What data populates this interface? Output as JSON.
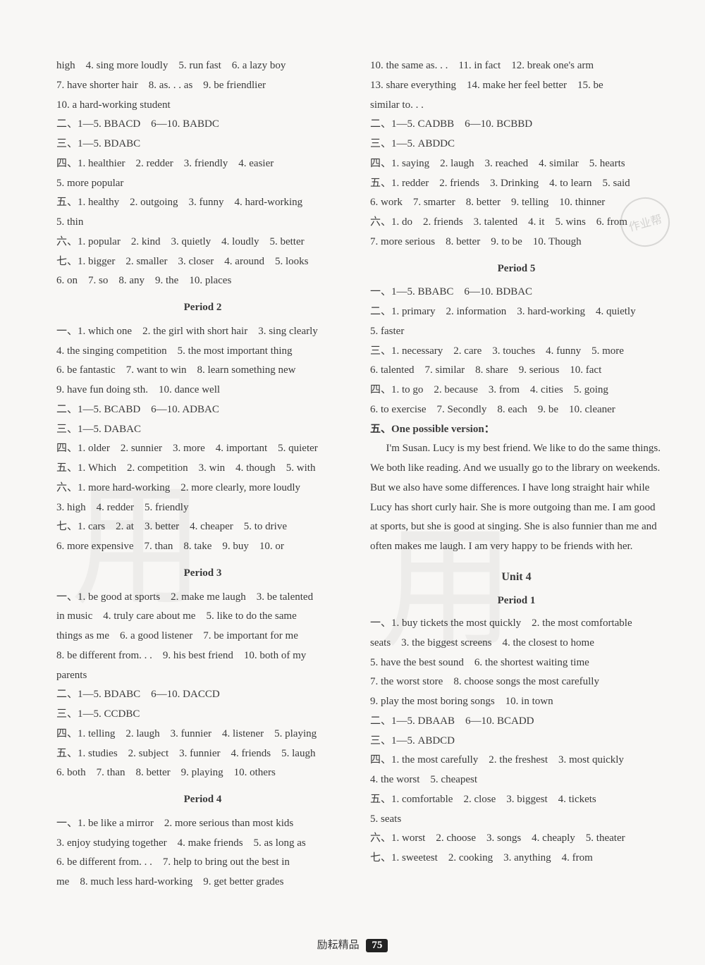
{
  "left": {
    "p1_prefix": [
      "high　4. sing more loudly　5. run fast　6. a lazy boy",
      "7. have shorter hair　8. as. . . as　9. be friendlier",
      "10. a hard-working student",
      "二、1—5. BBACD　6—10. BABDC",
      "三、1—5. BDABC",
      "四、1. healthier　2. redder　3. friendly　4. easier",
      "5. more popular",
      "五、1. healthy　2. outgoing　3. funny　4. hard-working",
      "5. thin",
      "六、1. popular　2. kind　3. quietly　4. loudly　5. better",
      "七、1. bigger　2. smaller　3. closer　4. around　5. looks",
      "6. on　7. so　8. any　9. the　10. places"
    ],
    "p2_title": "Period 2",
    "p2": [
      "一、1. which one　2. the girl with short hair　3. sing clearly",
      "4. the singing competition　5. the most important thing",
      "6. be fantastic　7. want to win　8. learn something new",
      "9. have fun doing sth.　10. dance well",
      "二、1—5. BCABD　6—10. ADBAC",
      "三、1—5. DABAC",
      "四、1. older　2. sunnier　3. more　4. important　5. quieter",
      "五、1. Which　2. competition　3. win　4. though　5. with",
      "六、1. more hard-working　2. more clearly, more loudly",
      "3. high　4. redder　5. friendly",
      "七、1. cars　2. at　3. better　4. cheaper　5. to drive",
      "6. more expensive　7. than　8. take　9. buy　10. or"
    ],
    "p3_title": "Period 3",
    "p3": [
      "一、1. be good at sports　2. make me laugh　3. be talented",
      "in music　4. truly care about me　5. like to do the same",
      "things as me　6. a good listener　7. be important for me",
      "8. be different from. . .　9. his best friend　10. both of my",
      "parents",
      "二、1—5. BDABC　6—10. DACCD",
      "三、1—5. CCDBC",
      "四、1. telling　2. laugh　3. funnier　4. listener　5. playing",
      "五、1. studies　2. subject　3. funnier　4. friends　5. laugh",
      "6. both　7. than　8. better　9. playing　10. others"
    ],
    "p4_title": "Period 4",
    "p4": [
      "一、1. be like a mirror　2. more serious than most kids",
      "3. enjoy studying together　4. make friends　5. as long as",
      "6. be different from. . .　7. help to bring out the best in",
      "me　8. much less hard-working　9. get better grades"
    ]
  },
  "right": {
    "p4_cont": [
      "10. the same as. . .　11. in fact　12. break one's arm",
      "13. share everything　14. make her feel better　15. be",
      "similar to. . .",
      "二、1—5. CADBB　6—10. BCBBD",
      "三、1—5. ABDDC",
      "四、1. saying　2. laugh　3. reached　4. similar　5. hearts",
      "五、1. redder　2. friends　3. Drinking　4. to learn　5. said",
      "6. work　7. smarter　8. better　9. telling　10. thinner",
      "六、1. do　2. friends　3. talented　4. it　5. wins　6. from",
      "7. more serious　8. better　9. to be　10. Though"
    ],
    "p5_title": "Period 5",
    "p5": [
      "一、1—5. BBABC　6—10. BDBAC",
      "二、1. primary　2. information　3. hard-working　4. quietly",
      "5. faster",
      "三、1. necessary　2. care　3. touches　4. funny　5. more",
      "6. talented　7. similar　8. share　9. serious　10. fact",
      "四、1. to go　2. because　3. from　4. cities　5. going",
      "6. to exercise　7. Secondly　8. each　9. be　10. cleaner"
    ],
    "writing_label": "五、One possible version：",
    "essay": "I'm Susan. Lucy is my best friend. We like to do the same things. We both like reading. And we usually go to the library on weekends. But we also have some differences. I have long straight hair while Lucy has short curly hair. She is more outgoing than me. I am good at sports, but she is good at singing. She is also funnier than me and often makes me laugh. I am very happy to be friends with her.",
    "unit": "Unit 4",
    "u4p1_title": "Period 1",
    "u4p1": [
      "一、1. buy tickets the most quickly　2. the most comfortable",
      "seats　3. the biggest screens　4. the closest to home",
      "5. have the best sound　6. the shortest waiting time",
      "7. the worst store　8. choose songs the most carefully",
      "9. play the most boring songs　10. in town",
      "二、1—5. DBAAB　6—10. BCADD",
      "三、1—5. ABDCD",
      "四、1. the most carefully　2. the freshest　3. most quickly",
      "4. the worst　5. cheapest",
      "五、1. comfortable　2. close　3. biggest　4. tickets",
      "5. seats",
      "六、1. worst　2. choose　3. songs　4. cheaply　5. theater",
      "七、1. sweetest　2. cooking　3. anything　4. from"
    ]
  },
  "footer": {
    "brand": "励耘精品",
    "page": "75"
  },
  "stamp": "作业帮",
  "wm": "用"
}
